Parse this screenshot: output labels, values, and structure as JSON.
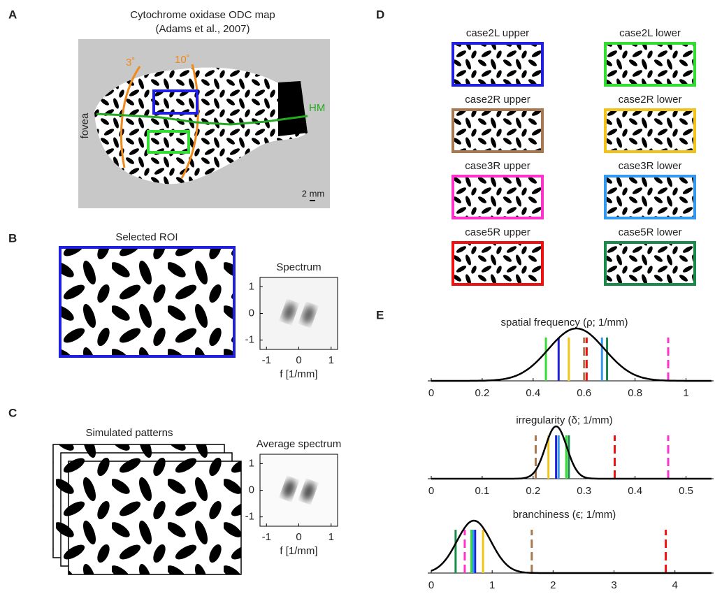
{
  "panels": {
    "A": {
      "label": "A",
      "title": "Cytochrome oxidase ODC map",
      "subtitle": "(Adams et al., 2007)",
      "iso3": "3˚",
      "iso10": "10˚",
      "hm": "HM",
      "fovea": "fovea",
      "scale": "2 mm"
    },
    "B": {
      "label": "B",
      "roi_title": "Selected ROI"
    },
    "C": {
      "label": "C",
      "sim_title": "Simulated patterns"
    },
    "D": {
      "label": "D",
      "cases": [
        {
          "name": "case2L upper",
          "color": "#1f1fdd",
          "dashed": false
        },
        {
          "name": "case2L lower",
          "color": "#33dd33",
          "dashed": false
        },
        {
          "name": "case2R upper",
          "color": "#a87850",
          "dashed": true
        },
        {
          "name": "case2R lower",
          "color": "#f2c418",
          "dashed": false
        },
        {
          "name": "case3R upper",
          "color": "#ff33cc",
          "dashed": true
        },
        {
          "name": "case3R lower",
          "color": "#3399ee",
          "dashed": false
        },
        {
          "name": "case5R upper",
          "color": "#ee1111",
          "dashed": true
        },
        {
          "name": "case5R lower",
          "color": "#1a8a4a",
          "dashed": false
        }
      ]
    },
    "E": {
      "label": "E"
    }
  },
  "chart_data": [
    {
      "type": "spectrum",
      "title": "Spectrum",
      "xlabel": "f [1/mm]",
      "xlim": [
        -1.2,
        1.2
      ],
      "ylim": [
        -1.35,
        1.35
      ],
      "xticks": [
        -1,
        0,
        1
      ],
      "yticks": [
        -1,
        0,
        1
      ]
    },
    {
      "type": "spectrum",
      "title": "Average spectrum",
      "xlabel": "f [1/mm]",
      "xlim": [
        -1.2,
        1.2
      ],
      "ylim": [
        -1.35,
        1.35
      ],
      "xticks": [
        -1,
        0,
        1
      ],
      "yticks": [
        -1,
        0,
        1
      ]
    },
    {
      "type": "density",
      "title": "spatial frequency (ρ; 1/mm)",
      "xlim": [
        0,
        1.1
      ],
      "xticks": [
        0,
        0.2,
        0.4,
        0.6,
        0.8,
        1
      ],
      "fit": {
        "mean": 0.57,
        "sd": 0.11
      },
      "values": [
        0.5,
        0.45,
        0.6,
        0.54,
        0.93,
        0.67,
        0.61,
        0.69
      ]
    },
    {
      "type": "density",
      "title": "irregularity (δ; 1/mm)",
      "xlim": [
        0,
        0.55
      ],
      "xticks": [
        0,
        0.1,
        0.2,
        0.3,
        0.4,
        0.5
      ],
      "fit": {
        "mean": 0.245,
        "sd": 0.021
      },
      "values": [
        0.245,
        0.265,
        0.205,
        0.23,
        0.465,
        0.25,
        0.36,
        0.27
      ]
    },
    {
      "type": "density",
      "title": "branchiness (ϵ; 1/mm)",
      "xlim": [
        0,
        4.6
      ],
      "xticks": [
        0,
        1,
        2,
        3,
        4
      ],
      "fit": {
        "mean": 0.7,
        "sd": 0.28
      },
      "values": [
        0.72,
        0.66,
        1.65,
        0.85,
        0.55,
        0.69,
        3.85,
        0.4
      ]
    }
  ]
}
